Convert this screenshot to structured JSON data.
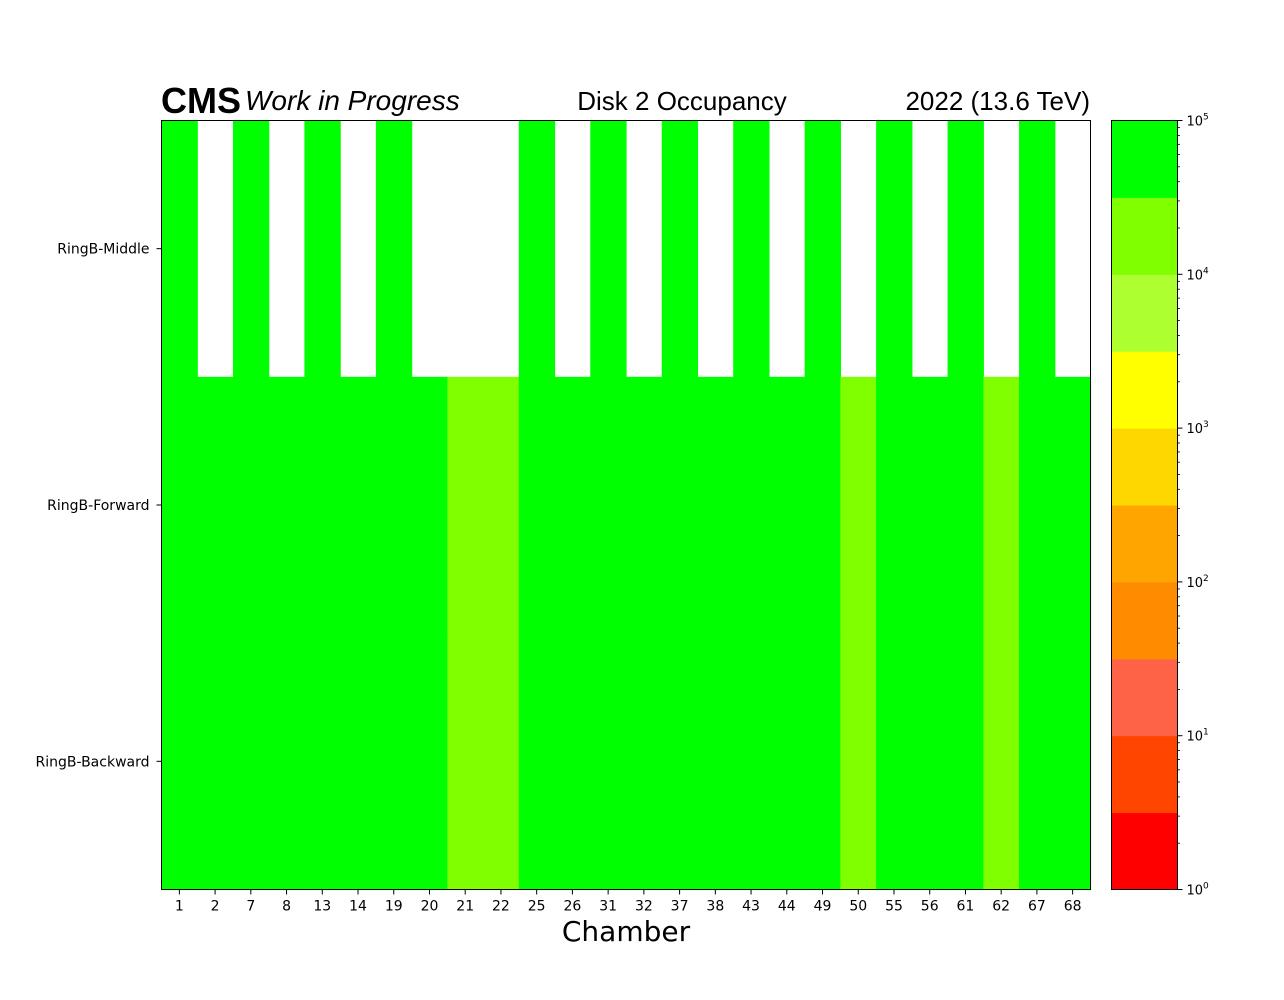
{
  "header": {
    "experiment": "CMS",
    "status": "Work in Progress",
    "title": "Disk 2 Occupancy",
    "lumi": "2022 (13.6 TeV)"
  },
  "chart_data": {
    "type": "heatmap",
    "xlabel": "Chamber",
    "ylabel": "",
    "categories": [
      "1",
      "2",
      "7",
      "8",
      "13",
      "14",
      "19",
      "20",
      "21",
      "22",
      "25",
      "26",
      "31",
      "32",
      "37",
      "38",
      "43",
      "44",
      "49",
      "50",
      "55",
      "56",
      "61",
      "62",
      "67",
      "68"
    ],
    "rows": [
      "RingB-Middle",
      "RingB-Forward",
      "RingB-Backward"
    ],
    "color_scale": {
      "scale": "log",
      "range": [
        1,
        100000
      ],
      "bin_edges": [
        1,
        3.162,
        10,
        31.62,
        100,
        316.2,
        1000,
        3162,
        10000,
        31620,
        100000
      ],
      "colors": [
        "#ff0000",
        "#ff4500",
        "#ff6347",
        "#ff8c00",
        "#ffa500",
        "#ffd700",
        "#ffff00",
        "#adff2f",
        "#7fff00",
        "#00ff00"
      ],
      "tick_base": "10",
      "tick_exponents": [
        "0",
        "1",
        "2",
        "3",
        "4",
        "5"
      ]
    },
    "values": {
      "RingB-Middle": [
        50000,
        null,
        50000,
        null,
        50000,
        null,
        50000,
        null,
        null,
        null,
        50000,
        null,
        50000,
        null,
        50000,
        null,
        50000,
        null,
        50000,
        null,
        50000,
        null,
        50000,
        null,
        50000,
        null
      ],
      "RingB-Forward": [
        50000,
        50000,
        50000,
        50000,
        50000,
        50000,
        50000,
        50000,
        20000,
        20000,
        50000,
        50000,
        50000,
        50000,
        50000,
        50000,
        50000,
        50000,
        50000,
        20000,
        50000,
        50000,
        50000,
        20000,
        50000,
        50000
      ],
      "RingB-Backward": [
        50000,
        50000,
        50000,
        50000,
        50000,
        50000,
        50000,
        50000,
        20000,
        20000,
        50000,
        50000,
        50000,
        50000,
        50000,
        50000,
        50000,
        50000,
        50000,
        20000,
        50000,
        50000,
        50000,
        20000,
        50000,
        50000
      ]
    }
  }
}
